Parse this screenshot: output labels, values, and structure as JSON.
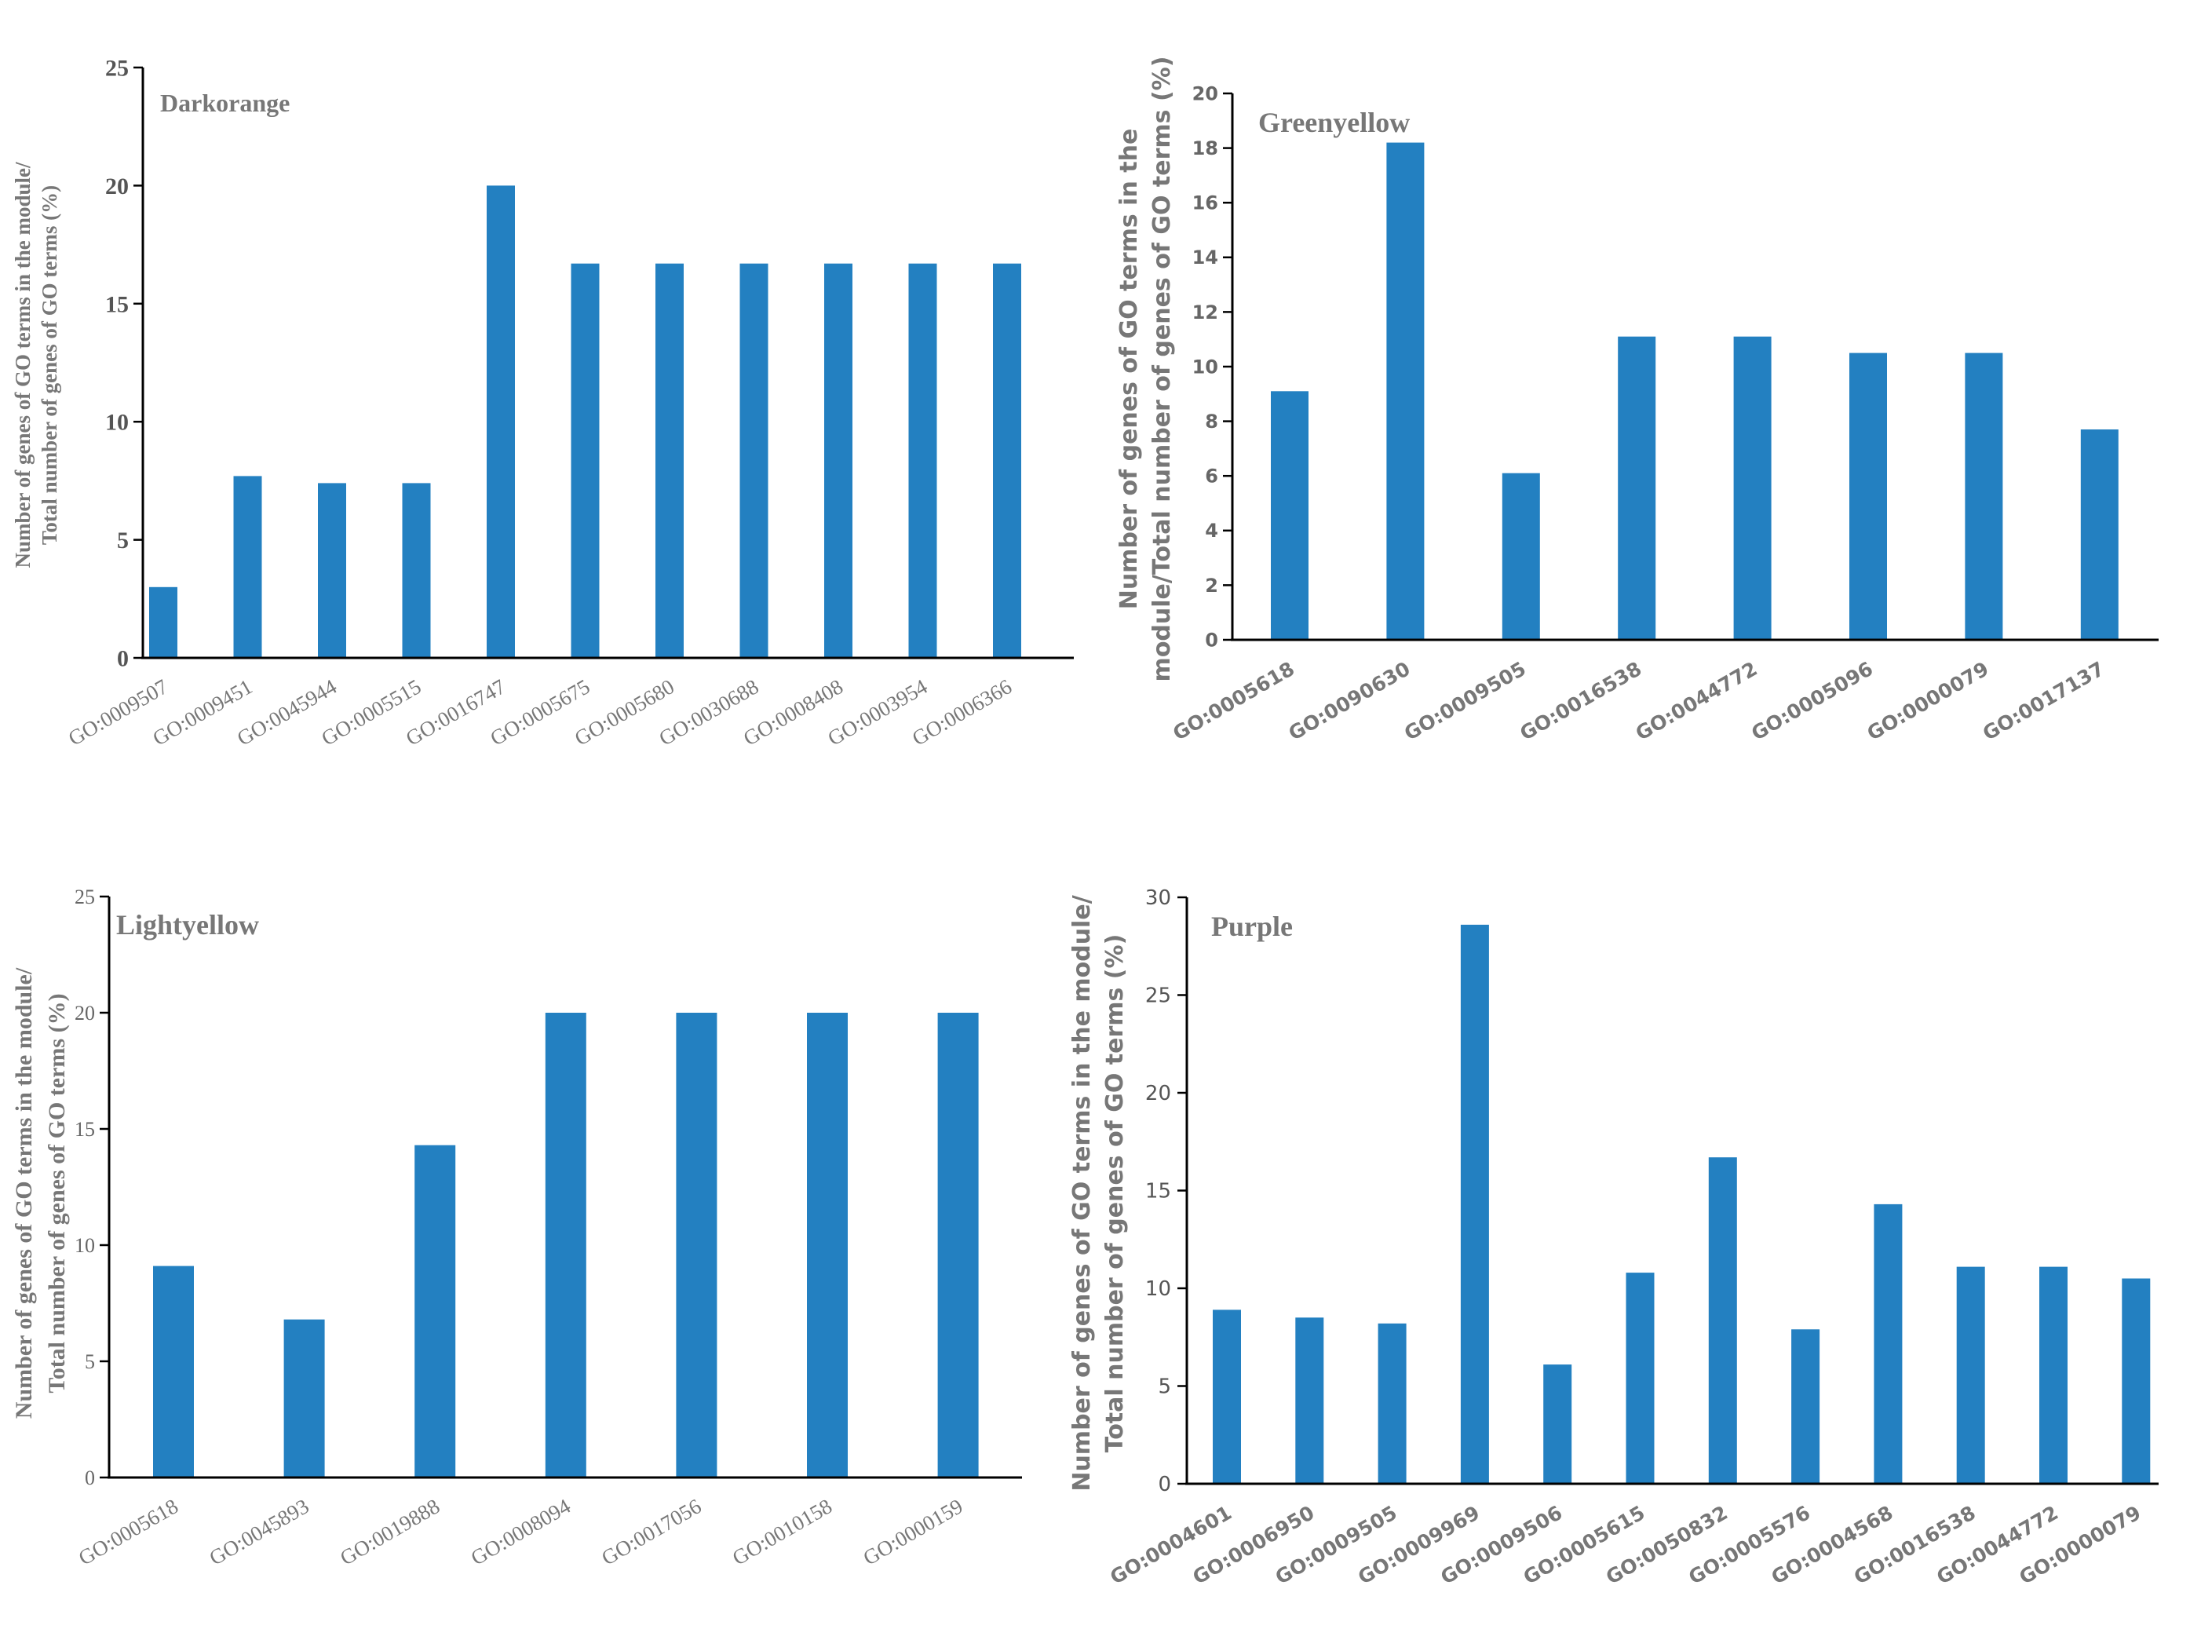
{
  "chart_data": [
    {
      "type": "bar",
      "title": "Darkorange",
      "ylabel_lines": [
        "Number of genes of GO terms in the module/",
        "Total number of genes of GO terms (%)"
      ],
      "xlabel": "",
      "ylim": [
        0,
        25
      ],
      "yticks": [
        0,
        5,
        10,
        15,
        20,
        25
      ],
      "categories": [
        "GO:0009507",
        "GO:0009451",
        "GO:0045944",
        "GO:0005515",
        "GO:0016747",
        "GO:0005675",
        "GO:0005680",
        "GO:0030688",
        "GO:0008408",
        "GO:0003954",
        "GO:0006366"
      ],
      "values": [
        3.0,
        7.7,
        7.4,
        7.4,
        20.0,
        16.7,
        16.7,
        16.7,
        16.7,
        16.7,
        16.7
      ],
      "color": "#2380C1"
    },
    {
      "type": "bar",
      "title": "Greenyellow",
      "ylabel_lines": [
        "Number of genes of GO terms in the",
        "module/Total number of genes of GO terms (%)"
      ],
      "xlabel": "",
      "ylim": [
        0,
        20
      ],
      "yticks": [
        0,
        2,
        4,
        6,
        8,
        10,
        12,
        14,
        16,
        18,
        20
      ],
      "categories": [
        "GO:0005618",
        "GO:0090630",
        "GO:0009505",
        "GO:0016538",
        "GO:0044772",
        "GO:0005096",
        "GO:0000079",
        "GO:0017137"
      ],
      "values": [
        9.1,
        18.2,
        6.1,
        11.1,
        11.1,
        10.5,
        10.5,
        7.7
      ],
      "color": "#2380C1"
    },
    {
      "type": "bar",
      "title": "Lightyellow",
      "ylabel_lines": [
        "Number of genes of GO terms in the module/",
        "Total number of genes of GO terms (%)"
      ],
      "xlabel": "",
      "ylim": [
        0,
        25
      ],
      "yticks": [
        0,
        5,
        10,
        15,
        20,
        25
      ],
      "categories": [
        "GO:0005618",
        "GO:0045893",
        "GO:0019888",
        "GO:0008094",
        "GO:0017056",
        "GO:0010158",
        "GO:0000159"
      ],
      "values": [
        9.1,
        6.8,
        14.3,
        20.0,
        20.0,
        20.0,
        20.0
      ],
      "color": "#2380C1"
    },
    {
      "type": "bar",
      "title": "Purple",
      "ylabel_lines": [
        "Number of genes of GO terms in the module/",
        "Total number of genes of GO terms (%)"
      ],
      "xlabel": "",
      "ylim": [
        0,
        30
      ],
      "yticks": [
        0,
        5,
        10,
        15,
        20,
        25,
        30
      ],
      "categories": [
        "GO:0004601",
        "GO:0006950",
        "GO:0009505",
        "GO:0009969",
        "GO:0009506",
        "GO:0005615",
        "GO:0050832",
        "GO:0005576",
        "GO:0004568",
        "GO:0016538",
        "GO:0044772",
        "GO:0000079"
      ],
      "values": [
        8.9,
        8.5,
        8.2,
        28.6,
        6.1,
        10.8,
        16.7,
        7.9,
        14.3,
        11.1,
        11.1,
        10.5
      ],
      "color": "#2380C1"
    }
  ]
}
